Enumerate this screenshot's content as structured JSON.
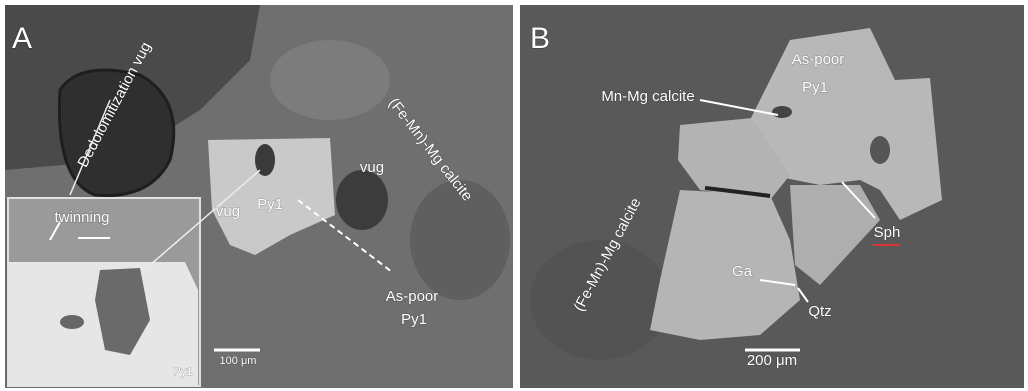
{
  "panels": [
    {
      "label": "A",
      "annotations": [
        "Dedolomitization vug",
        "twinning",
        "vug",
        "Py1",
        "vug",
        "(Fe-Mn)-Mg calcite",
        "As-poor",
        "Py1",
        "Py1",
        "100 μm"
      ]
    },
    {
      "label": "B",
      "annotations": [
        "As-poor",
        "Py1",
        "Mn-Mg calcite",
        "(Fe-Mn)-Mg calcite",
        "Sph",
        "Ga",
        "Qtz",
        "200 μm"
      ]
    }
  ]
}
